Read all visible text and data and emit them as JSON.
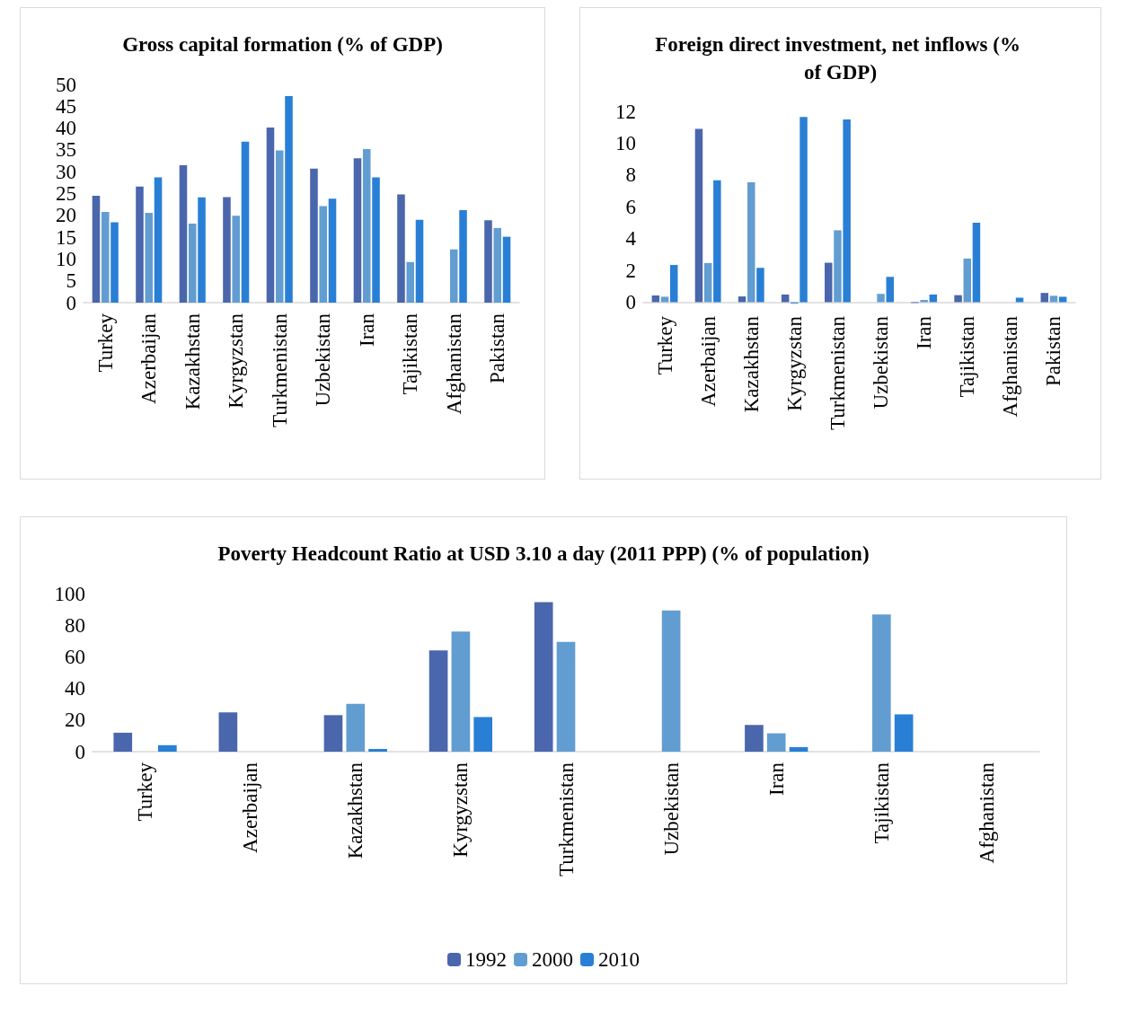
{
  "chart_data": [
    {
      "type": "bar",
      "title": "Gross capital formation (% of GDP)",
      "categories": [
        "Turkey",
        "Azerbaijan",
        "Kazakhstan",
        "Kyrgyzstan",
        "Turkmenistan",
        "Uzbekistan",
        "Iran",
        "Tajikistan",
        "Afghanistan",
        "Pakistan"
      ],
      "series": [
        {
          "color": "#4a66ac",
          "values": [
            24.5,
            26.6,
            31.5,
            24.2,
            40.1,
            30.7,
            33.1,
            24.8,
            null,
            18.9
          ]
        },
        {
          "color": "#629dd1",
          "values": [
            20.8,
            20.6,
            18.1,
            19.9,
            34.9,
            22.1,
            35.2,
            9.3,
            12.2,
            17.1
          ]
        },
        {
          "color": "#297fd5",
          "values": [
            18.4,
            28.7,
            24.1,
            36.9,
            47.3,
            23.8,
            28.7,
            19.0,
            21.2,
            15.1
          ]
        }
      ],
      "ylim": [
        0,
        50
      ],
      "yticks": [
        0,
        5,
        10,
        15,
        20,
        25,
        30,
        35,
        40,
        45,
        50
      ],
      "grid": false,
      "legend": false
    },
    {
      "type": "bar",
      "title": "Foreign direct investment, net inflows (% of GDP)",
      "categories": [
        "Turkey",
        "Azerbaijan",
        "Kazakhstan",
        "Kyrgyzstan",
        "Turkmenistan",
        "Uzbekistan",
        "Iran",
        "Tajikistan",
        "Afghanistan",
        "Pakistan"
      ],
      "series": [
        {
          "color": "#4a66ac",
          "values": [
            0.42,
            10.9,
            0.36,
            0.48,
            2.48,
            null,
            -0.05,
            0.44,
            null,
            0.58
          ]
        },
        {
          "color": "#629dd1",
          "values": [
            0.34,
            2.46,
            7.54,
            -0.1,
            4.52,
            0.52,
            0.14,
            2.74,
            null,
            0.4
          ]
        },
        {
          "color": "#297fd5",
          "values": [
            2.34,
            7.66,
            2.16,
            11.65,
            11.49,
            1.59,
            0.48,
            5.0,
            0.28,
            0.34
          ]
        }
      ],
      "ylim": [
        -0.2,
        12
      ],
      "yticks": [
        0,
        2,
        4,
        6,
        8,
        10,
        12
      ],
      "grid": false,
      "legend": false
    },
    {
      "type": "bar",
      "title": "Poverty Headcount Ratio at USD 3.10 a day (2011 PPP) (% of population)",
      "categories": [
        "Turkey",
        "Azerbaijan",
        "Kazakhstan",
        "Kyrgyzstan",
        "Turkmenistan",
        "Uzbekistan",
        "Iran",
        "Tajikistan",
        "Afghanistan"
      ],
      "series": [
        {
          "name": "1992",
          "color": "#4a66ac",
          "values": [
            12.0,
            24.8,
            23.1,
            64,
            94.6,
            null,
            16.9,
            null,
            null
          ]
        },
        {
          "name": "2000",
          "color": "#629dd1",
          "values": [
            null,
            null,
            30.2,
            76,
            69.4,
            89.3,
            11.6,
            86.8,
            null
          ]
        },
        {
          "name": "2010",
          "color": "#297fd5",
          "values": [
            4.1,
            null,
            1.7,
            21.9,
            null,
            null,
            2.9,
            23.6,
            null
          ]
        }
      ],
      "ylim": [
        0,
        100
      ],
      "yticks": [
        0,
        20,
        40,
        60,
        80,
        100
      ],
      "grid": false,
      "legend": "bottom"
    }
  ]
}
